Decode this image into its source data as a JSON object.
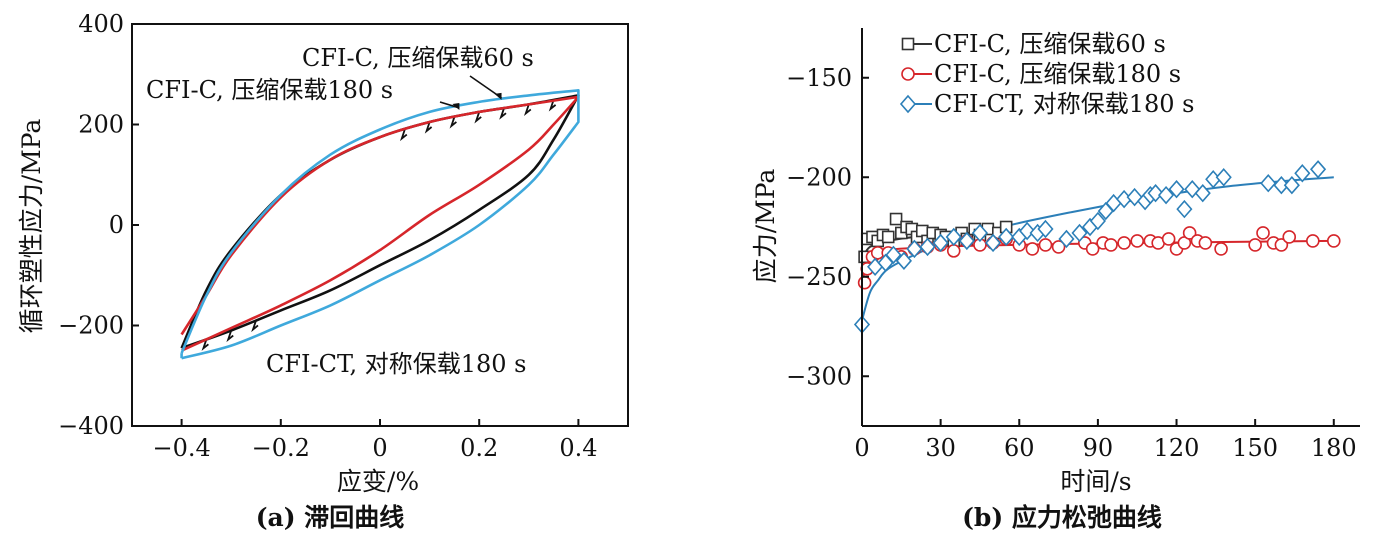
{
  "chart_data": [
    {
      "id": "a",
      "type": "line",
      "caption": "(a) 滞回曲线",
      "xlabel": "应变/%",
      "ylabel": "循环塑性应力/MPa",
      "xlim": [
        -0.5,
        0.5
      ],
      "ylim": [
        -400,
        400
      ],
      "xticks": [
        -0.4,
        -0.2,
        0,
        0.2,
        0.4
      ],
      "xtick_labels": [
        "−0.4",
        "−0.2",
        "0",
        "0.2",
        "0.4"
      ],
      "yticks": [
        -400,
        -200,
        0,
        200,
        400
      ],
      "ytick_labels": [
        "−400",
        "−200",
        "0",
        "200",
        "400"
      ],
      "grid": false,
      "legend": "none",
      "series": [
        {
          "name": "CFI-C, 压缩保载60 s",
          "color": "#111111",
          "upper": [
            [
              -0.4,
              -245
            ],
            [
              -0.35,
              -130
            ],
            [
              -0.3,
              -50
            ],
            [
              -0.2,
              60
            ],
            [
              -0.1,
              130
            ],
            [
              0,
              175
            ],
            [
              0.1,
              205
            ],
            [
              0.2,
              225
            ],
            [
              0.3,
              240
            ],
            [
              0.4,
              258
            ]
          ],
          "lower": [
            [
              0.4,
              258
            ],
            [
              0.35,
              170
            ],
            [
              0.3,
              100
            ],
            [
              0.2,
              30
            ],
            [
              0.1,
              -30
            ],
            [
              0,
              -80
            ],
            [
              -0.1,
              -130
            ],
            [
              -0.2,
              -170
            ],
            [
              -0.3,
              -210
            ],
            [
              -0.4,
              -245
            ]
          ],
          "hold": "max"
        },
        {
          "name": "CFI-C, 压缩保载180 s",
          "color": "#d6262b",
          "upper": [
            [
              -0.4,
              -218
            ],
            [
              -0.35,
              -140
            ],
            [
              -0.3,
              -60
            ],
            [
              -0.2,
              55
            ],
            [
              -0.1,
              130
            ],
            [
              0,
              175
            ],
            [
              0.1,
              205
            ],
            [
              0.2,
              225
            ],
            [
              0.3,
              240
            ],
            [
              0.4,
              255
            ]
          ],
          "lower": [
            [
              0.4,
              255
            ],
            [
              0.35,
              200
            ],
            [
              0.3,
              150
            ],
            [
              0.2,
              80
            ],
            [
              0.1,
              20
            ],
            [
              0,
              -50
            ],
            [
              -0.1,
              -110
            ],
            [
              -0.2,
              -160
            ],
            [
              -0.3,
              -205
            ],
            [
              -0.4,
              -250
            ]
          ],
          "hold": "none"
        },
        {
          "name": "CFI-CT, 对称保载180 s",
          "color": "#3fa9dc",
          "upper": [
            [
              -0.4,
              -255
            ],
            [
              -0.35,
              -140
            ],
            [
              -0.3,
              -55
            ],
            [
              -0.2,
              60
            ],
            [
              -0.1,
              140
            ],
            [
              0,
              190
            ],
            [
              0.1,
              225
            ],
            [
              0.2,
              245
            ],
            [
              0.3,
              258
            ],
            [
              0.4,
              268
            ]
          ],
          "lower": [
            [
              0.4,
              205
            ],
            [
              0.35,
              140
            ],
            [
              0.3,
              80
            ],
            [
              0.2,
              0
            ],
            [
              0.1,
              -60
            ],
            [
              0,
              -110
            ],
            [
              -0.1,
              -160
            ],
            [
              -0.2,
              -200
            ],
            [
              -0.3,
              -240
            ],
            [
              -0.4,
              -265
            ]
          ],
          "hold": "both"
        }
      ],
      "annotations": [
        {
          "text": "CFI-C, 压缩保载60 s",
          "point": [
            0.245,
            245
          ]
        },
        {
          "text": "CFI-C, 压缩保载180 s",
          "point": [
            0.16,
            225
          ]
        },
        {
          "text": "CFI-CT, 对称保载180 s",
          "point": [
            -0.3,
            -240
          ]
        }
      ]
    },
    {
      "id": "b",
      "type": "scatter",
      "caption": "(b) 应力松弛曲线",
      "xlabel": "时间/s",
      "ylabel": "应力/MPa",
      "xlim": [
        0,
        190
      ],
      "ylim": [
        -325,
        -125
      ],
      "xticks": [
        0,
        30,
        60,
        90,
        120,
        150,
        180
      ],
      "xtick_labels": [
        "0",
        "30",
        "60",
        "90",
        "120",
        "150",
        "180"
      ],
      "yticks": [
        -300,
        -250,
        -200,
        -150
      ],
      "ytick_labels": [
        "−300",
        "−250",
        "−200",
        "−150"
      ],
      "grid": false,
      "legend": "top-left",
      "series": [
        {
          "name": "CFI-C, 压缩保载60 s",
          "marker": "square",
          "color": "#333333",
          "points": [
            [
              1,
              -240
            ],
            [
              2,
              -231
            ],
            [
              4,
              -230
            ],
            [
              6,
              -232
            ],
            [
              8,
              -229
            ],
            [
              10,
              -230
            ],
            [
              13,
              -221
            ],
            [
              15,
              -228
            ],
            [
              17,
              -225
            ],
            [
              19,
              -226
            ],
            [
              21,
              -230
            ],
            [
              23,
              -227
            ],
            [
              25,
              -232
            ],
            [
              27,
              -228
            ],
            [
              30,
              -229
            ],
            [
              32,
              -230
            ],
            [
              35,
              -232
            ],
            [
              38,
              -228
            ],
            [
              40,
              -231
            ],
            [
              43,
              -226
            ],
            [
              45,
              -229
            ],
            [
              48,
              -226
            ],
            [
              52,
              -228
            ],
            [
              55,
              -225
            ]
          ],
          "fit": [
            [
              0,
              -241
            ],
            [
              3,
              -235
            ],
            [
              10,
              -232
            ],
            [
              20,
              -230
            ],
            [
              30,
              -229
            ],
            [
              40,
              -228
            ],
            [
              50,
              -227
            ],
            [
              55,
              -227
            ]
          ]
        },
        {
          "name": "CFI-C, 压缩保载180 s",
          "marker": "circle",
          "color": "#d6262b",
          "points": [
            [
              1,
              -253
            ],
            [
              2,
              -246
            ],
            [
              4,
              -240
            ],
            [
              6,
              -238
            ],
            [
              10,
              -238
            ],
            [
              15,
              -240
            ],
            [
              20,
              -236
            ],
            [
              25,
              -235
            ],
            [
              30,
              -234
            ],
            [
              35,
              -237
            ],
            [
              40,
              -232
            ],
            [
              45,
              -234
            ],
            [
              50,
              -233
            ],
            [
              55,
              -231
            ],
            [
              60,
              -234
            ],
            [
              65,
              -236
            ],
            [
              70,
              -234
            ],
            [
              75,
              -235
            ],
            [
              85,
              -233
            ],
            [
              88,
              -236
            ],
            [
              92,
              -233
            ],
            [
              95,
              -234
            ],
            [
              100,
              -233
            ],
            [
              105,
              -232
            ],
            [
              110,
              -232
            ],
            [
              113,
              -233
            ],
            [
              117,
              -231
            ],
            [
              120,
              -236
            ],
            [
              123,
              -233
            ],
            [
              125,
              -228
            ],
            [
              128,
              -232
            ],
            [
              131,
              -233
            ],
            [
              137,
              -236
            ],
            [
              150,
              -234
            ],
            [
              153,
              -228
            ],
            [
              157,
              -233
            ],
            [
              160,
              -234
            ],
            [
              163,
              -230
            ],
            [
              172,
              -232
            ],
            [
              180,
              -232
            ]
          ],
          "fit": [
            [
              0,
              -254
            ],
            [
              2,
              -242
            ],
            [
              5,
              -238
            ],
            [
              10,
              -236.5
            ],
            [
              20,
              -235.5
            ],
            [
              40,
              -234.5
            ],
            [
              80,
              -233.5
            ],
            [
              120,
              -232.8
            ],
            [
              180,
              -232
            ]
          ]
        },
        {
          "name": "CFI-CT, 对称保载180 s",
          "marker": "diamond",
          "color": "#2c7fb8",
          "points": [
            [
              0,
              -274
            ],
            [
              5,
              -245
            ],
            [
              9,
              -243
            ],
            [
              12,
              -239
            ],
            [
              16,
              -242
            ],
            [
              20,
              -236
            ],
            [
              25,
              -235
            ],
            [
              30,
              -233
            ],
            [
              35,
              -230
            ],
            [
              40,
              -232
            ],
            [
              45,
              -228
            ],
            [
              50,
              -233
            ],
            [
              55,
              -230
            ],
            [
              60,
              -230
            ],
            [
              63,
              -227
            ],
            [
              67,
              -228
            ],
            [
              70,
              -226
            ],
            [
              78,
              -231
            ],
            [
              83,
              -228
            ],
            [
              87,
              -225
            ],
            [
              90,
              -222
            ],
            [
              93,
              -217
            ],
            [
              96,
              -213
            ],
            [
              100,
              -211
            ],
            [
              104,
              -210
            ],
            [
              108,
              -212
            ],
            [
              110,
              -209
            ],
            [
              112,
              -208
            ],
            [
              116,
              -209
            ],
            [
              120,
              -206
            ],
            [
              123,
              -216
            ],
            [
              126,
              -206
            ],
            [
              130,
              -208
            ],
            [
              134,
              -201
            ],
            [
              138,
              -200
            ],
            [
              155,
              -203
            ],
            [
              160,
              -204
            ],
            [
              164,
              -204
            ],
            [
              168,
              -198
            ],
            [
              174,
              -196
            ]
          ],
          "fit": [
            [
              0,
              -272
            ],
            [
              3,
              -258
            ],
            [
              6,
              -252
            ],
            [
              10,
              -246
            ],
            [
              20,
              -239
            ],
            [
              30,
              -233.5
            ],
            [
              45,
              -228
            ],
            [
              60,
              -223
            ],
            [
              80,
              -217.5
            ],
            [
              100,
              -212.5
            ],
            [
              120,
              -208
            ],
            [
              140,
              -204.5
            ],
            [
              160,
              -202
            ],
            [
              180,
              -200
            ]
          ]
        }
      ]
    }
  ]
}
